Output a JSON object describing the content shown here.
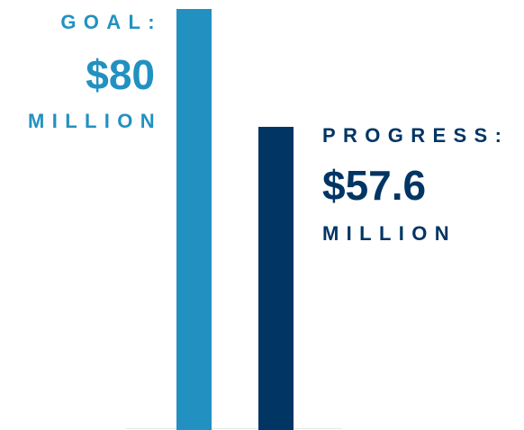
{
  "colors": {
    "goal": "#2291c1",
    "progress": "#013564"
  },
  "goal": {
    "kicker": "GOAL:",
    "amount": "$80",
    "unit": "MILLION"
  },
  "progress": {
    "kicker": "PROGRESS:",
    "amount": "$57.6",
    "unit": "MILLION"
  },
  "chart_data": {
    "type": "bar",
    "categories": [
      "GOAL:",
      "PROGRESS:"
    ],
    "values": [
      80,
      57.6
    ],
    "unit": "MILLION",
    "ylim": [
      0,
      80
    ],
    "grid": false
  }
}
